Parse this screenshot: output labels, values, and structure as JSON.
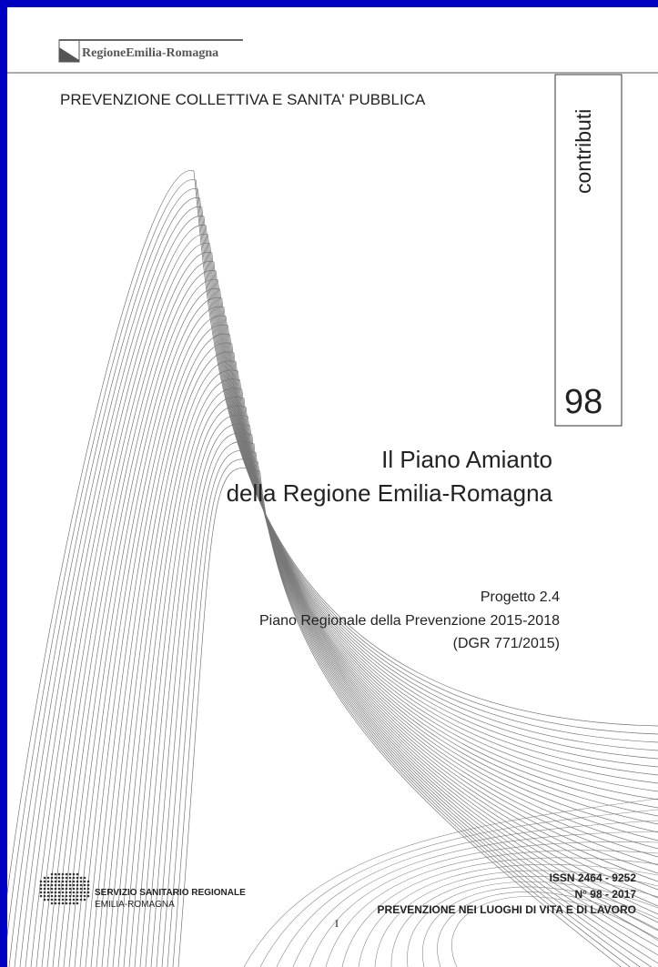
{
  "header": {
    "logo": "RegioneEmilia-Romagna",
    "series": "PREVENZIONE COLLETTIVA E SANITA' PUBBLICA",
    "collection": "contributi",
    "number": "98"
  },
  "title": {
    "line1": "Il Piano Amianto",
    "line2": "della Regione Emilia-Romagna"
  },
  "subtitle": {
    "project": "Progetto 2.4",
    "plan": "Piano Regionale della Prevenzione 2015-2018",
    "decree": "(DGR 771/2015)"
  },
  "footer": {
    "service": "SERVIZIO SANITARIO REGIONALE",
    "region": "EMILIA-ROMAGNA",
    "issn": "ISSN 2464 - 9252",
    "issue": "N° 98 - 2017",
    "topic": "PREVENZIONE NEI LUOGHI DI VITA E DI LAVORO",
    "page": "I"
  }
}
